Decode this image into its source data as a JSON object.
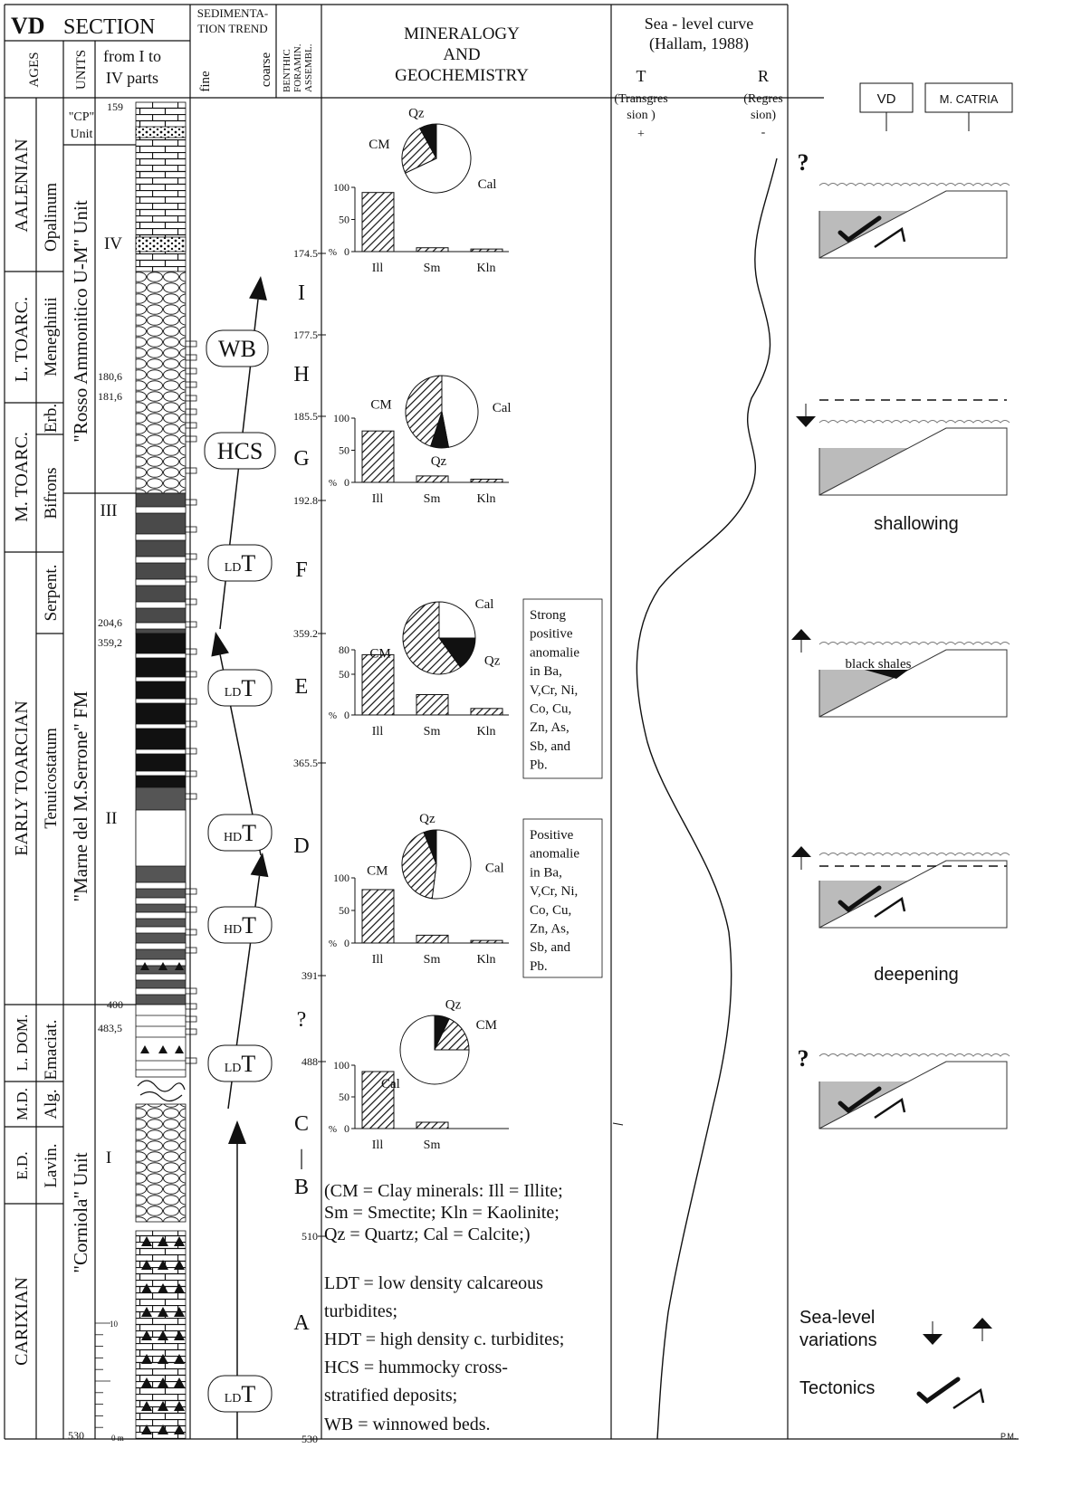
{
  "header": {
    "vd": "VD",
    "section": "SECTION",
    "sedimentation_trend": [
      "SEDIMENTA-",
      "TION TREND"
    ],
    "benthic": [
      "BENTHIC",
      "FORAMIN.",
      "ASSEMBL."
    ],
    "mineralogy": [
      "MINERALOGY",
      "AND",
      "GEOCHEMISTRY"
    ],
    "sea_level": [
      "Sea - level curve",
      "(Hallam, 1988)"
    ],
    "ages": "AGES",
    "units": "UNITS",
    "parts": [
      "from I to",
      "IV parts"
    ],
    "fine": "fine",
    "coarse": "coarse",
    "transgression": {
      "letter": "T",
      "text": [
        "(Transgres",
        "sion )"
      ],
      "sign": "+"
    },
    "regression": {
      "letter": "R",
      "text": [
        "(Regres",
        "sion)"
      ],
      "sign": "-"
    },
    "sections": [
      "VD",
      "M. CATRIA"
    ]
  },
  "ages": [
    "AALENIAN",
    "L. TOARC.",
    "M. TOARC.",
    "EARLY TOARCIAN",
    "L. DOM.",
    "M.D.",
    "E.D.",
    "CARIXIAN"
  ],
  "zones": [
    "Opalinum",
    "Meneghinii",
    "Erb.",
    "Bifrons",
    "Serpent.",
    "Tenuicostatum",
    "Emaciat.",
    "Alg.",
    "Lavin."
  ],
  "units": {
    "cp": [
      "\"CP\"",
      "Unit"
    ],
    "rosso": "\"Rosso Ammonitico U-M\" Unit",
    "marne": "\"Marne del M.Serrone\" FM",
    "corniola": "\"Corniola\" Unit"
  },
  "parts": [
    "IV",
    "III",
    "II",
    "I"
  ],
  "depths": [
    "159",
    "180,6",
    "181,6",
    "204,6",
    "359,2",
    "400",
    "483,5",
    "530"
  ],
  "scale": {
    "ten": "10",
    "zero": "0 m"
  },
  "trends": [
    {
      "label": "WB"
    },
    {
      "label": "HCS"
    },
    {
      "prefix": "LD",
      "label": "T"
    },
    {
      "prefix": "LD",
      "label": "T"
    },
    {
      "prefix": "HD",
      "label": "T"
    },
    {
      "prefix": "HD",
      "label": "T"
    },
    {
      "prefix": "LD",
      "label": "T"
    },
    {
      "prefix": "LD",
      "label": "T"
    }
  ],
  "benthic": {
    "zones": [
      "I",
      "H",
      "G",
      "F",
      "E",
      "D",
      "?",
      "C",
      "|",
      "B",
      "A"
    ],
    "depths": [
      "174.5",
      "177.5",
      "185.5",
      "192.8",
      "359.2",
      "365.5",
      "391",
      "488",
      "510",
      "530"
    ]
  },
  "mineralogy": {
    "panels": [
      {
        "pie": [
          {
            "name": "Cal",
            "value": 68
          },
          {
            "name": "CM",
            "value": 24
          },
          {
            "name": "Qz",
            "value": 8
          }
        ],
        "y_unit": "%",
        "bars": {
          "categories": [
            "Ill",
            "Sm",
            "Kln"
          ],
          "values": [
            92,
            6,
            4
          ],
          "ylim": [
            0,
            100
          ],
          "yticks": [
            0,
            50,
            100
          ]
        }
      },
      {
        "pie": [
          {
            "name": "Cal",
            "value": 47
          },
          {
            "name": "Qz",
            "value": 8
          },
          {
            "name": "CM",
            "value": 45
          }
        ],
        "y_unit": "%",
        "bars": {
          "categories": [
            "Ill",
            "Sm",
            "Kln"
          ],
          "values": [
            80,
            10,
            5
          ],
          "ylim": [
            0,
            100
          ],
          "yticks": [
            0,
            50,
            100
          ]
        }
      },
      {
        "pie": [
          {
            "name": "Cal",
            "value": 25
          },
          {
            "name": "Qz",
            "value": 15
          },
          {
            "name": "CM",
            "value": 60
          }
        ],
        "y_unit": "%",
        "bars": {
          "categories": [
            "Ill",
            "Sm",
            "Kln"
          ],
          "values": [
            74,
            25,
            8
          ],
          "ylim": [
            0,
            80
          ],
          "yticks": [
            0,
            50,
            80
          ]
        }
      },
      {
        "pie": [
          {
            "name": "Cal",
            "value": 52
          },
          {
            "name": "CM",
            "value": 42
          },
          {
            "name": "Qz",
            "value": 6
          }
        ],
        "y_unit": "%",
        "bars": {
          "categories": [
            "Ill",
            "Sm",
            "Kln"
          ],
          "values": [
            82,
            12,
            4
          ],
          "ylim": [
            0,
            100
          ],
          "yticks": [
            0,
            50,
            100
          ]
        }
      },
      {
        "pie": [
          {
            "name": "Qz",
            "value": 7
          },
          {
            "name": "CM",
            "value": 18
          },
          {
            "name": "Cal",
            "value": 75
          }
        ],
        "y_unit": "%",
        "bars": {
          "categories": [
            "Ill",
            "Sm"
          ],
          "values": [
            90,
            10
          ],
          "ylim": [
            0,
            100
          ],
          "yticks": [
            0,
            50,
            100
          ]
        }
      }
    ]
  },
  "notes": [
    [
      "Strong",
      "positive",
      "anomalie",
      "in Ba,",
      "V,Cr, Ni,",
      "Co, Cu,",
      "Zn, As,",
      "Sb, and",
      "Pb."
    ],
    [
      "Positive",
      "anomalie",
      "in Ba,",
      "V,Cr, Ni,",
      "Co, Cu,",
      "Zn, As,",
      "Sb, and",
      "Pb."
    ]
  ],
  "legend": [
    "(CM = Clay minerals: Ill = Illite;",
    "Sm = Smectite; Kln = Kaolinite;",
    "Qz = Quartz; Cal = Calcite;)",
    "LDT = low density calcareous",
    "turbidites;",
    "HDT = high density c. turbidites;",
    "HCS = hummocky cross-",
    "stratified deposits;",
    "WB = winnowed beds."
  ],
  "diagram": {
    "question": [
      "?",
      "?"
    ],
    "black_shales": "black shales",
    "shallowing": "shallowing",
    "deepening": "deepening",
    "legend": {
      "sea_level": [
        "Sea-level",
        "variations"
      ],
      "tectonics": "Tectonics"
    },
    "credit": "P.M."
  }
}
